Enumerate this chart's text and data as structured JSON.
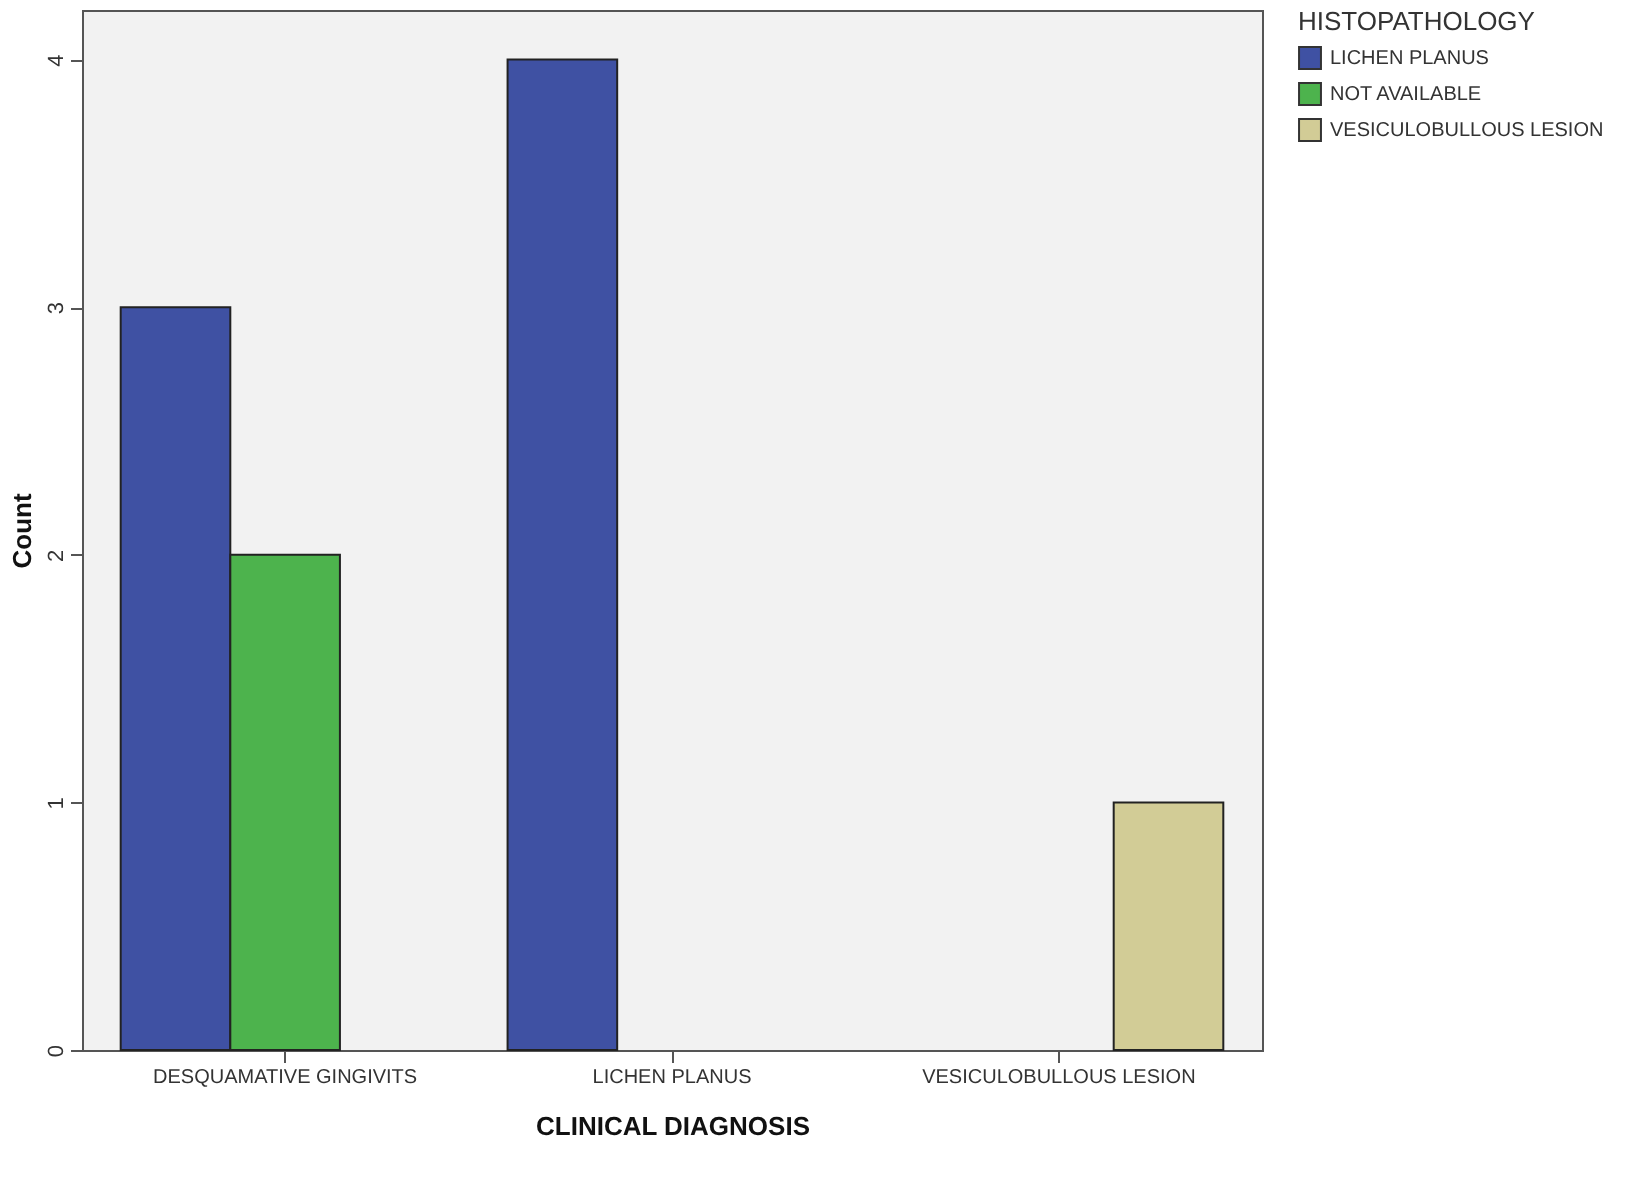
{
  "chart_data": {
    "type": "bar",
    "xlabel": "CLINICAL DIAGNOSIS",
    "ylabel": "Count",
    "legend_title": "HISTOPATHOLOGY",
    "categories": [
      "DESQUAMATIVE GINGIVITS",
      "LICHEN PLANUS",
      "VESICULOBULLOUS LESION"
    ],
    "series": [
      {
        "name": "LICHEN PLANUS",
        "color": "#3f51a3",
        "values": [
          3,
          4,
          0
        ]
      },
      {
        "name": "NOT AVAILABLE",
        "color": "#4db34d",
        "values": [
          2,
          0,
          0
        ]
      },
      {
        "name": "VESICULOBULLOUS LESION",
        "color": "#d2cc96",
        "values": [
          0,
          0,
          1
        ]
      }
    ],
    "ylim": [
      0,
      4.2
    ],
    "yticks": [
      0,
      1,
      2,
      3,
      4
    ],
    "grid": false,
    "legend": "top right"
  }
}
